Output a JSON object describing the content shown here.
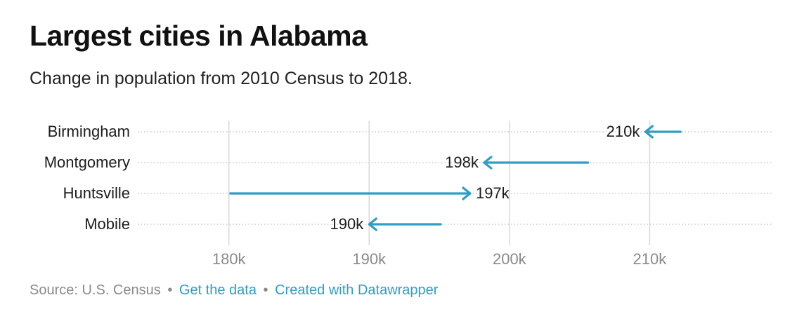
{
  "header": {
    "title": "Largest cities in Alabama",
    "subtitle": "Change in population from 2010 Census to 2018."
  },
  "chart_data": {
    "type": "arrow",
    "title": "Largest cities in Alabama",
    "subtitle": "Change in population from 2010 Census to 2018.",
    "xlabel": "",
    "ylabel": "",
    "xlim": [
      173500,
      218800
    ],
    "xticks": [
      180000,
      190000,
      200000,
      210000
    ],
    "xtick_labels": [
      "180k",
      "190k",
      "200k",
      "210k"
    ],
    "grid": true,
    "series": [
      {
        "name": "2010",
        "values": [
          212200,
          205600,
          180100,
          195100
        ]
      },
      {
        "name": "2018",
        "values": [
          209700,
          198200,
          197200,
          190000
        ]
      }
    ],
    "categories": [
      "Birmingham",
      "Montgomery",
      "Huntsville",
      "Mobile"
    ],
    "value_labels": [
      "210k",
      "198k",
      "197k",
      "190k"
    ],
    "arrow_color": "#2f9ec4"
  },
  "footer": {
    "source": "Source: U.S. Census",
    "separator": "•",
    "get_data": "Get the data",
    "created_with": "Created with Datawrapper"
  }
}
